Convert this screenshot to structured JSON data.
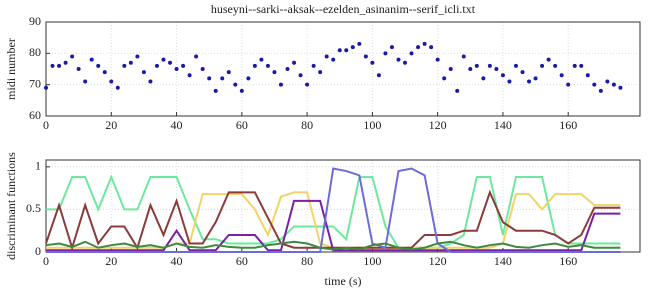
{
  "chart_data": [
    {
      "type": "scatter",
      "title": "huseyni--sarki--aksak--ezelden_asinanim--serif_icli.txt",
      "y_label": "midi number",
      "x": [
        0,
        2,
        4,
        6,
        8,
        10,
        12,
        14,
        16,
        18,
        20,
        22,
        24,
        26,
        28,
        30,
        32,
        34,
        36,
        38,
        40,
        42,
        44,
        46,
        48,
        50,
        52,
        54,
        56,
        58,
        60,
        62,
        64,
        66,
        68,
        70,
        72,
        74,
        76,
        78,
        80,
        82,
        84,
        86,
        88,
        90,
        92,
        94,
        96,
        98,
        100,
        102,
        104,
        106,
        108,
        110,
        112,
        114,
        116,
        118,
        120,
        122,
        124,
        126,
        128,
        130,
        132,
        134,
        136,
        138,
        140,
        142,
        144,
        146,
        148,
        150,
        152,
        154,
        156,
        158,
        160,
        162,
        164,
        166,
        168,
        170,
        172,
        174,
        176
      ],
      "values": [
        69,
        76,
        76,
        77,
        79,
        75,
        71,
        78,
        76,
        74,
        71,
        69,
        76,
        77,
        79,
        74,
        71,
        76,
        78,
        77,
        75,
        76,
        73,
        79,
        75,
        72,
        68,
        72,
        74,
        70,
        68,
        72,
        76,
        78,
        76,
        74,
        70,
        75,
        77,
        73,
        70,
        76,
        74,
        79,
        78,
        81,
        81,
        82,
        83,
        79,
        77,
        73,
        80,
        82,
        78,
        77,
        80,
        82,
        83,
        82,
        78,
        72,
        75,
        68,
        79,
        75,
        76,
        72,
        76,
        75,
        73,
        71,
        76,
        74,
        71,
        72,
        76,
        78,
        76,
        73,
        70,
        76,
        76,
        73,
        70,
        68,
        71,
        70,
        69
      ],
      "color": "#1a1aa8",
      "xlim": [
        0,
        182
      ],
      "ylim": [
        60,
        90
      ],
      "xticks": [
        0,
        20,
        40,
        60,
        80,
        100,
        120,
        140,
        160
      ],
      "yticks": [
        60,
        70,
        80,
        90
      ],
      "grid": true
    },
    {
      "type": "line",
      "x_label": "time (s)",
      "y_label": "discriminant functions",
      "x": [
        0,
        4,
        8,
        12,
        16,
        20,
        24,
        28,
        32,
        36,
        40,
        44,
        48,
        52,
        56,
        60,
        64,
        68,
        72,
        76,
        80,
        84,
        88,
        92,
        96,
        100,
        104,
        108,
        112,
        116,
        120,
        124,
        128,
        132,
        136,
        140,
        144,
        148,
        152,
        156,
        160,
        164,
        168,
        172,
        176
      ],
      "series": [
        {
          "color": "#6ee89e",
          "values": [
            0.5,
            0.5,
            0.88,
            0.88,
            0.5,
            0.88,
            0.5,
            0.5,
            0.88,
            0.88,
            0.88,
            0.5,
            0.15,
            0.15,
            0.1,
            0.1,
            0.1,
            0.1,
            0.15,
            0.3,
            0.3,
            0.3,
            0.3,
            0.15,
            0.88,
            0.88,
            0.3,
            0.05,
            0.05,
            0.05,
            0.05,
            0.1,
            0.2,
            0.88,
            0.88,
            0.2,
            0.88,
            0.88,
            0.88,
            0.2,
            0.1,
            0.1,
            0.1,
            0.1,
            0.1
          ]
        },
        {
          "color": "#f2d36a",
          "values": [
            0.05,
            0.05,
            0.05,
            0.05,
            0.05,
            0.05,
            0.05,
            0.05,
            0.05,
            0.05,
            0.1,
            0.1,
            0.68,
            0.68,
            0.68,
            0.68,
            0.5,
            0.2,
            0.65,
            0.7,
            0.7,
            0.1,
            0.05,
            0.05,
            0.05,
            0.05,
            0.05,
            0.05,
            0.05,
            0.05,
            0.05,
            0.05,
            0.05,
            0.05,
            0.05,
            0.1,
            0.68,
            0.68,
            0.5,
            0.68,
            0.68,
            0.68,
            0.55,
            0.55,
            0.55
          ]
        },
        {
          "color": "#8c3b3b",
          "values": [
            0.1,
            0.55,
            0.05,
            0.55,
            0.1,
            0.3,
            0.3,
            0.05,
            0.55,
            0.2,
            0.6,
            0.1,
            0.1,
            0.35,
            0.7,
            0.7,
            0.7,
            0.4,
            0.1,
            0.05,
            0.05,
            0.05,
            0.05,
            0.05,
            0.05,
            0.05,
            0.05,
            0.05,
            0.05,
            0.2,
            0.2,
            0.2,
            0.25,
            0.25,
            0.7,
            0.35,
            0.25,
            0.25,
            0.25,
            0.2,
            0.1,
            0.2,
            0.52,
            0.52,
            0.52
          ]
        },
        {
          "color": "#7a1fa8",
          "values": [
            0.02,
            0.02,
            0.02,
            0.02,
            0.02,
            0.02,
            0.02,
            0.02,
            0.02,
            0.02,
            0.25,
            0.02,
            0.02,
            0.02,
            0.2,
            0.2,
            0.2,
            0.02,
            0.02,
            0.6,
            0.6,
            0.6,
            0.02,
            0.02,
            0.02,
            0.02,
            0.02,
            0.02,
            0.02,
            0.02,
            0.02,
            0.02,
            0.02,
            0.02,
            0.02,
            0.02,
            0.02,
            0.02,
            0.02,
            0.02,
            0.02,
            0.02,
            0.45,
            0.45,
            0.45
          ]
        },
        {
          "color": "#6c6cd8",
          "values": [
            0,
            0,
            0,
            0,
            0,
            0,
            0,
            0,
            0,
            0,
            0,
            0,
            0,
            0,
            0,
            0,
            0,
            0,
            0,
            0,
            0,
            0,
            0.98,
            0.95,
            0.9,
            0.1,
            0.05,
            0.95,
            0.98,
            0.9,
            0.1,
            0,
            0,
            0,
            0,
            0,
            0,
            0,
            0,
            0,
            0,
            0,
            0,
            0,
            0
          ]
        },
        {
          "color": "#3f8a3f",
          "values": [
            0.08,
            0.1,
            0.06,
            0.12,
            0.05,
            0.08,
            0.1,
            0.06,
            0.08,
            0.05,
            0.1,
            0.06,
            0.05,
            0.08,
            0.06,
            0.05,
            0.05,
            0.08,
            0.1,
            0.12,
            0.1,
            0.05,
            0.03,
            0.05,
            0.03,
            0.08,
            0.1,
            0.05,
            0.03,
            0.05,
            0.1,
            0.12,
            0.08,
            0.05,
            0.08,
            0.1,
            0.06,
            0.05,
            0.08,
            0.1,
            0.06,
            0.08,
            0.05,
            0.05,
            0.05
          ]
        }
      ],
      "xlim": [
        0,
        182
      ],
      "ylim": [
        0,
        1.08
      ],
      "xticks": [
        0,
        20,
        40,
        60,
        80,
        100,
        120,
        140,
        160
      ],
      "yticks": [
        0,
        0.5,
        1
      ],
      "grid": true
    }
  ]
}
